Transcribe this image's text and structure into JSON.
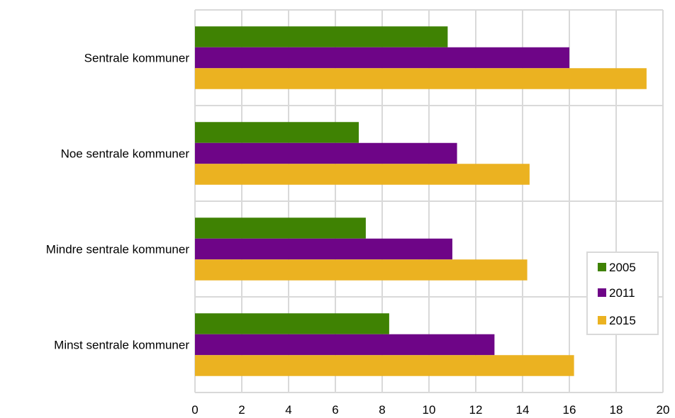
{
  "chart_data": {
    "type": "bar",
    "orientation": "horizontal",
    "categories": [
      "Sentrale kommuner",
      "Noe sentrale kommuner",
      "Mindre sentrale kommuner",
      "Minst sentrale kommuner"
    ],
    "series": [
      {
        "name": "2005",
        "color": "#3f8203",
        "values": [
          10.8,
          7.0,
          7.3,
          8.3
        ]
      },
      {
        "name": "2011",
        "color": "#6e0587",
        "values": [
          16.0,
          11.2,
          11.0,
          12.8
        ]
      },
      {
        "name": "2015",
        "color": "#ebb221",
        "values": [
          19.3,
          14.3,
          14.2,
          16.2
        ]
      }
    ],
    "xlim": [
      0,
      20
    ],
    "xticks": [
      "0",
      "2",
      "4",
      "6",
      "8",
      "10",
      "12",
      "14",
      "16",
      "18",
      "20"
    ],
    "grid": true,
    "legend_position": "right"
  }
}
